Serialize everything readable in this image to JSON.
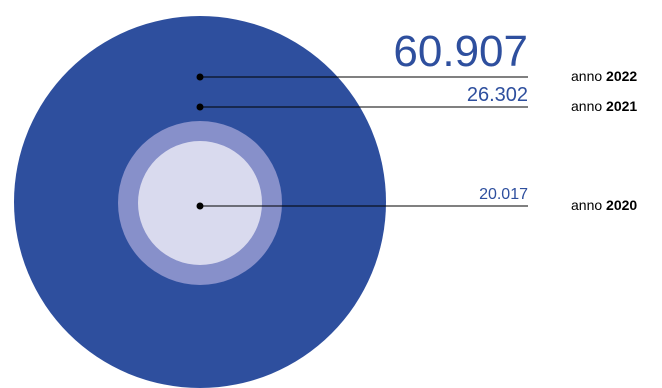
{
  "colors": {
    "outer": "#2E4F9E",
    "middle": "#8790CA",
    "inner": "#D9DAEE",
    "value_text": "#2E4F9E",
    "line": "#000000",
    "year_text": "#000000"
  },
  "chart_data": {
    "type": "bubble",
    "series": [
      {
        "value_label": "60.907",
        "value": 60907,
        "year_prefix": "anno",
        "year": "2022"
      },
      {
        "value_label": "26.302",
        "value": 26302,
        "year_prefix": "anno",
        "year": "2021"
      },
      {
        "value_label": "20.017",
        "value": 20017,
        "year_prefix": "anno",
        "year": "2020"
      }
    ]
  }
}
